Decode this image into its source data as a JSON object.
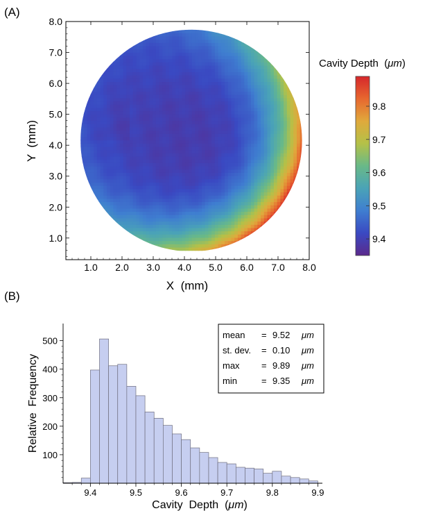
{
  "panels": {
    "a_label": "(A)",
    "b_label": "(B)"
  },
  "chart_data": [
    {
      "type": "heatmap",
      "panel": "(A)",
      "xlabel": "X  (mm)",
      "ylabel": "Y  (mm)",
      "xlim": [
        0.2,
        8.0
      ],
      "ylim": [
        0.3,
        8.0
      ],
      "x_ticks": [
        "1.0",
        "2.0",
        "3.0",
        "4.0",
        "5.0",
        "6.0",
        "7.0",
        "8.0"
      ],
      "y_ticks": [
        "1.0",
        "2.0",
        "3.0",
        "4.0",
        "5.0",
        "6.0",
        "7.0",
        "8.0"
      ],
      "aperture": {
        "center_x_mm": 4.22,
        "center_y_mm": 4.15,
        "radius_mm": 3.55
      },
      "colorbar": {
        "title": "Cavity Depth  (",
        "title_unit": "μm",
        "title_close": ")",
        "range": [
          9.35,
          9.89
        ],
        "ticks": [
          "9.4",
          "9.5",
          "9.6",
          "9.7",
          "9.8"
        ],
        "colormap": [
          "#5b2a8c",
          "#3a49c2",
          "#3f7ed0",
          "#4aa3b7",
          "#69b988",
          "#b4c148",
          "#e0a93c",
          "#e7672f",
          "#d6272b"
        ]
      }
    },
    {
      "type": "bar",
      "panel": "(B)",
      "xlabel": "Cavity  Depth  (",
      "xlabel_unit": "μm",
      "xlabel_close": ")",
      "ylabel": "Relative  Frequency",
      "xlim": [
        9.34,
        9.91
      ],
      "ylim": [
        0,
        560
      ],
      "x_ticks": [
        "9.4",
        "9.5",
        "9.6",
        "9.7",
        "9.8",
        "9.9"
      ],
      "y_ticks": [
        "100",
        "200",
        "300",
        "400",
        "500"
      ],
      "bin_width": 0.02,
      "bins": [
        {
          "x": 9.34,
          "value": 2
        },
        {
          "x": 9.36,
          "value": 3
        },
        {
          "x": 9.38,
          "value": 18
        },
        {
          "x": 9.4,
          "value": 397
        },
        {
          "x": 9.42,
          "value": 506
        },
        {
          "x": 9.44,
          "value": 412
        },
        {
          "x": 9.46,
          "value": 417
        },
        {
          "x": 9.48,
          "value": 340
        },
        {
          "x": 9.5,
          "value": 307
        },
        {
          "x": 9.52,
          "value": 250
        },
        {
          "x": 9.54,
          "value": 228
        },
        {
          "x": 9.56,
          "value": 203
        },
        {
          "x": 9.58,
          "value": 173
        },
        {
          "x": 9.6,
          "value": 153
        },
        {
          "x": 9.62,
          "value": 124
        },
        {
          "x": 9.64,
          "value": 108
        },
        {
          "x": 9.66,
          "value": 90
        },
        {
          "x": 9.68,
          "value": 73
        },
        {
          "x": 9.7,
          "value": 68
        },
        {
          "x": 9.72,
          "value": 56
        },
        {
          "x": 9.74,
          "value": 53
        },
        {
          "x": 9.76,
          "value": 50
        },
        {
          "x": 9.78,
          "value": 35
        },
        {
          "x": 9.8,
          "value": 42
        },
        {
          "x": 9.82,
          "value": 25
        },
        {
          "x": 9.84,
          "value": 20
        },
        {
          "x": 9.86,
          "value": 15
        },
        {
          "x": 9.88,
          "value": 8
        }
      ],
      "stats": [
        {
          "label": "mean",
          "eq": "=",
          "value": "9.52",
          "unit": "μm"
        },
        {
          "label": "st. dev.",
          "eq": "=",
          "value": "0.10",
          "unit": "μm"
        },
        {
          "label": "max",
          "eq": "=",
          "value": "9.89",
          "unit": "μm"
        },
        {
          "label": "min",
          "eq": "=",
          "value": "9.35",
          "unit": "μm"
        }
      ],
      "colors": {
        "bar_fill": "#c6cef0",
        "bar_stroke": "#6f6f7f"
      }
    }
  ]
}
